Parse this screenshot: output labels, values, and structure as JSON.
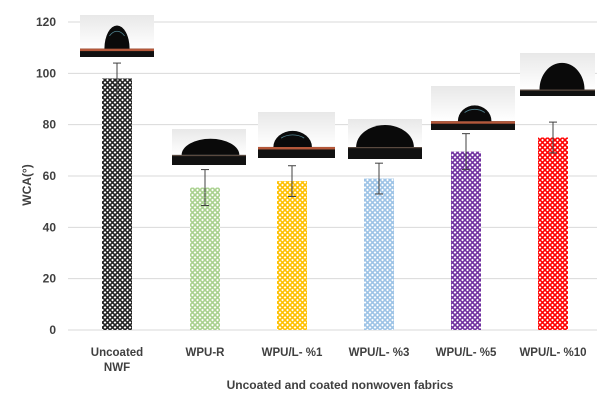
{
  "chart_data": {
    "type": "bar",
    "title": "",
    "xlabel": "Uncoated and coated nonwoven fabrics",
    "ylabel": "WCA(°)",
    "ylim": [
      0,
      120
    ],
    "yticks": [
      0,
      20,
      40,
      60,
      80,
      100,
      120
    ],
    "grid": true,
    "categories": [
      [
        "Uncoated",
        "NWF"
      ],
      [
        "WPU-R"
      ],
      [
        "WPU/L- %1"
      ],
      [
        "WPU/L- %3"
      ],
      [
        "WPU/L- %5"
      ],
      [
        "WPU/L- %10"
      ]
    ],
    "values": [
      98,
      55.5,
      58,
      59,
      69.5,
      75
    ],
    "errors": [
      6,
      7,
      6,
      6,
      7,
      6
    ],
    "colors": [
      "#202020",
      "#a9d18e",
      "#ffc000",
      "#9dc3e6",
      "#7030a0",
      "#ff0000"
    ],
    "pattern": "diamond-lattice",
    "inset_images": [
      "water-droplet-photo",
      "water-droplet-photo",
      "water-droplet-photo",
      "water-droplet-photo",
      "water-droplet-photo",
      "water-droplet-photo"
    ]
  }
}
